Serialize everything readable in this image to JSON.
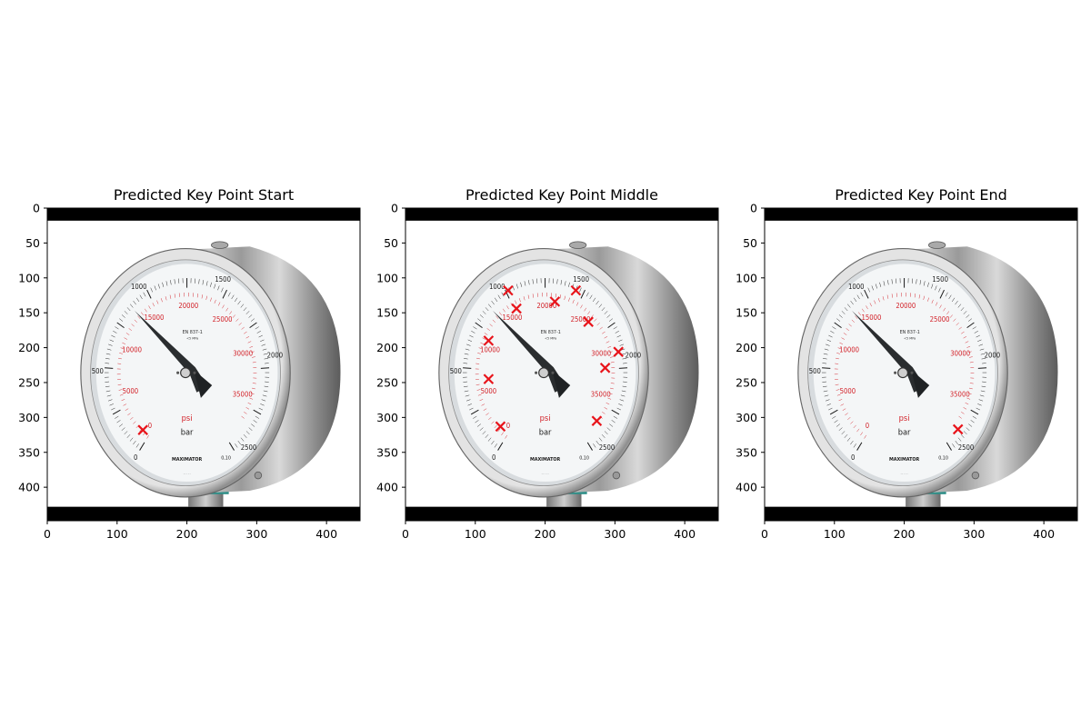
{
  "figure": {
    "colors": {
      "marker": "#e8141b",
      "dial_red": "#d21f26",
      "dial_black": "#1a1a1a",
      "band": "#000000"
    }
  },
  "gauge_face": {
    "bar_labels": [
      "0",
      "500",
      "1000",
      "1500",
      "2000",
      "2500"
    ],
    "psi_labels": [
      "0",
      "5000",
      "10000",
      "15000",
      "20000",
      "25000",
      "30000",
      "35000"
    ],
    "unit_red": "psi",
    "unit_black": "bar",
    "brand": "MAXIMATOR",
    "class_mark": "0,10",
    "spec_line_1": "EN 837-1",
    "spec_line_2": "<5 MPa"
  },
  "chart_data": [
    {
      "type": "scatter",
      "title": "Predicted Key Point Start",
      "xlim": [
        0,
        448
      ],
      "ylim": [
        448,
        0
      ],
      "xticks": [
        0,
        100,
        200,
        300,
        400
      ],
      "yticks": [
        0,
        50,
        100,
        150,
        200,
        250,
        300,
        350,
        400
      ],
      "grid": false,
      "points": [
        {
          "x": 137,
          "y": 318
        }
      ]
    },
    {
      "type": "scatter",
      "title": "Predicted Key Point Middle",
      "xlim": [
        0,
        448
      ],
      "ylim": [
        448,
        0
      ],
      "xticks": [
        0,
        100,
        200,
        300,
        400
      ],
      "yticks": [
        0,
        50,
        100,
        150,
        200,
        250,
        300,
        350,
        400
      ],
      "grid": false,
      "points": [
        {
          "x": 147,
          "y": 118
        },
        {
          "x": 159,
          "y": 144
        },
        {
          "x": 214,
          "y": 134
        },
        {
          "x": 244,
          "y": 118
        },
        {
          "x": 262,
          "y": 163
        },
        {
          "x": 305,
          "y": 206
        },
        {
          "x": 286,
          "y": 229
        },
        {
          "x": 119,
          "y": 190
        },
        {
          "x": 119,
          "y": 245
        },
        {
          "x": 136,
          "y": 313
        },
        {
          "x": 274,
          "y": 305
        }
      ]
    },
    {
      "type": "scatter",
      "title": "Predicted Key Point End",
      "xlim": [
        0,
        448
      ],
      "ylim": [
        448,
        0
      ],
      "xticks": [
        0,
        100,
        200,
        300,
        400
      ],
      "yticks": [
        0,
        50,
        100,
        150,
        200,
        250,
        300,
        350,
        400
      ],
      "grid": false,
      "points": [
        {
          "x": 277,
          "y": 317
        }
      ]
    }
  ]
}
